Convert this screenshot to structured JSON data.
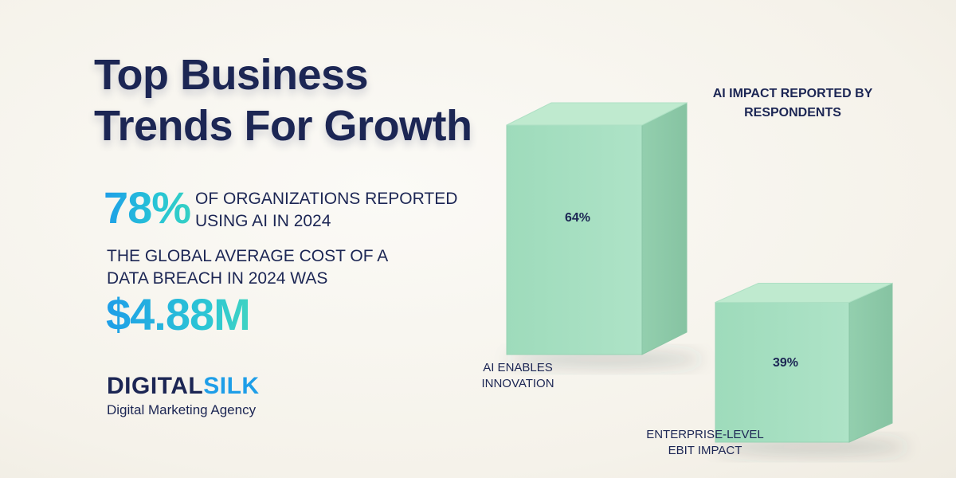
{
  "headline": {
    "line1": "Top Business",
    "line2": "Trends For Growth"
  },
  "stats": {
    "ai_usage_value": "78%",
    "ai_usage_label_line1": "OF ORGANIZATIONS REPORTED",
    "ai_usage_label_line2": "USING AI IN 2024",
    "breach_label_line1": "THE GLOBAL AVERAGE COST OF A",
    "breach_label_line2": "DATA BREACH IN 2024 WAS",
    "breach_value": "$4.88M"
  },
  "brand": {
    "name_part1": "DIGITAL",
    "name_part2": "SILK",
    "tagline": "Digital Marketing Agency"
  },
  "chart_data": {
    "type": "bar",
    "title_line1": "AI IMPACT REPORTED BY",
    "title_line2": "RESPONDENTS",
    "categories": [
      [
        "AI ENABLES",
        "INNOVATION"
      ],
      [
        "ENTERPRISE-LEVEL",
        "EBIT IMPACT"
      ]
    ],
    "values": [
      64,
      39
    ],
    "value_labels": [
      "64%",
      "39%"
    ],
    "unit": "%",
    "colors": {
      "front": "#a6dfc1",
      "side": "#8fc9a9",
      "top": "#bfeacf",
      "label": "#1c2654"
    }
  }
}
